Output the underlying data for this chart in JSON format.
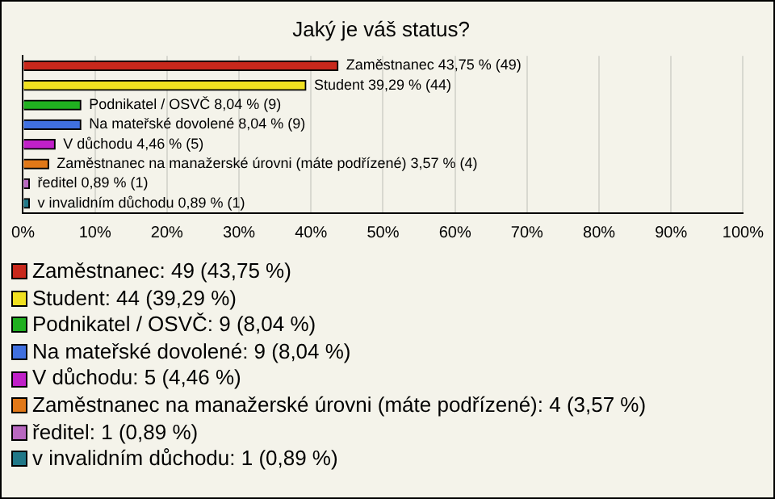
{
  "chart_data": {
    "type": "bar",
    "title": "Jaký je váš status?",
    "orientation": "horizontal",
    "stacked": true,
    "categories": [
      null,
      null,
      null,
      null,
      null,
      null,
      null,
      null
    ],
    "series": [
      {
        "name": "Zaměstnanec: 49 (43,75 %)",
        "color": "#c8281c",
        "values": [
          43.75,
          null,
          null,
          null,
          null,
          null,
          null,
          null
        ],
        "value_labels": [
          "Zaměstnanec 43,75 % (49)",
          null,
          null,
          null,
          null,
          null,
          null,
          null
        ]
      },
      {
        "name": "Student: 44 (39,29 %)",
        "color": "#f0e020",
        "values": [
          null,
          39.29,
          null,
          null,
          null,
          null,
          null,
          null
        ],
        "value_labels": [
          null,
          "Student 39,29 % (44)",
          null,
          null,
          null,
          null,
          null,
          null
        ]
      },
      {
        "name": "Podnikatel / OSVČ: 9 (8,04 %)",
        "color": "#20b020",
        "values": [
          null,
          null,
          8.04,
          null,
          null,
          null,
          null,
          null
        ],
        "value_labels": [
          null,
          null,
          "Podnikatel / OSVČ 8,04 % (9)",
          null,
          null,
          null,
          null,
          null
        ]
      },
      {
        "name": "Na mateřské dovolené: 9 (8,04 %)",
        "color": "#4070e0",
        "values": [
          null,
          null,
          null,
          8.04,
          null,
          null,
          null,
          null
        ],
        "value_labels": [
          null,
          null,
          null,
          "Na mateřské dovolené 8,04 % (9)",
          null,
          null,
          null,
          null
        ]
      },
      {
        "name": "V důchodu: 5 (4,46 %)",
        "color": "#c020c8",
        "values": [
          null,
          null,
          null,
          null,
          4.46,
          null,
          null,
          null
        ],
        "value_labels": [
          null,
          null,
          null,
          null,
          "V důchodu 4,46 % (5)",
          null,
          null,
          null
        ]
      },
      {
        "name": "Zaměstnanec na manažerské úrovni (máte podřízené): 4 (3,57 %)",
        "color": "#e07818",
        "values": [
          null,
          null,
          null,
          null,
          null,
          3.57,
          null,
          null
        ],
        "value_labels": [
          null,
          null,
          null,
          null,
          null,
          "Zaměstnanec na manažerské úrovni (máte podřízené) 3,57 % (4)",
          null,
          null
        ]
      },
      {
        "name": "ředitel: 1 (0,89 %)",
        "color": "#b868c0",
        "values": [
          null,
          null,
          null,
          null,
          null,
          null,
          0.89,
          null
        ],
        "value_labels": [
          null,
          null,
          null,
          null,
          null,
          null,
          "ředitel 0,89 % (1)",
          null
        ]
      },
      {
        "name": "v invalidním důchodu: 1 (0,89 %)",
        "color": "#207888",
        "values": [
          null,
          null,
          null,
          null,
          null,
          null,
          null,
          0.89
        ],
        "value_labels": [
          null,
          null,
          null,
          null,
          null,
          null,
          null,
          "v invalidním důchodu 0,89 % (1)"
        ]
      }
    ],
    "xlim": [
      0,
      100
    ],
    "xticks": [
      {
        "value": 0,
        "label": "0%"
      },
      {
        "value": 10,
        "label": "10%"
      },
      {
        "value": 20,
        "label": "20%"
      },
      {
        "value": 30,
        "label": "30%"
      },
      {
        "value": 40,
        "label": "40%"
      },
      {
        "value": 50,
        "label": "50%"
      },
      {
        "value": 60,
        "label": "60%"
      },
      {
        "value": 70,
        "label": "70%"
      },
      {
        "value": 80,
        "label": "80%"
      },
      {
        "value": 90,
        "label": "90%"
      },
      {
        "value": 100,
        "label": "100%"
      }
    ],
    "grid": "x",
    "legend": "bottom"
  }
}
